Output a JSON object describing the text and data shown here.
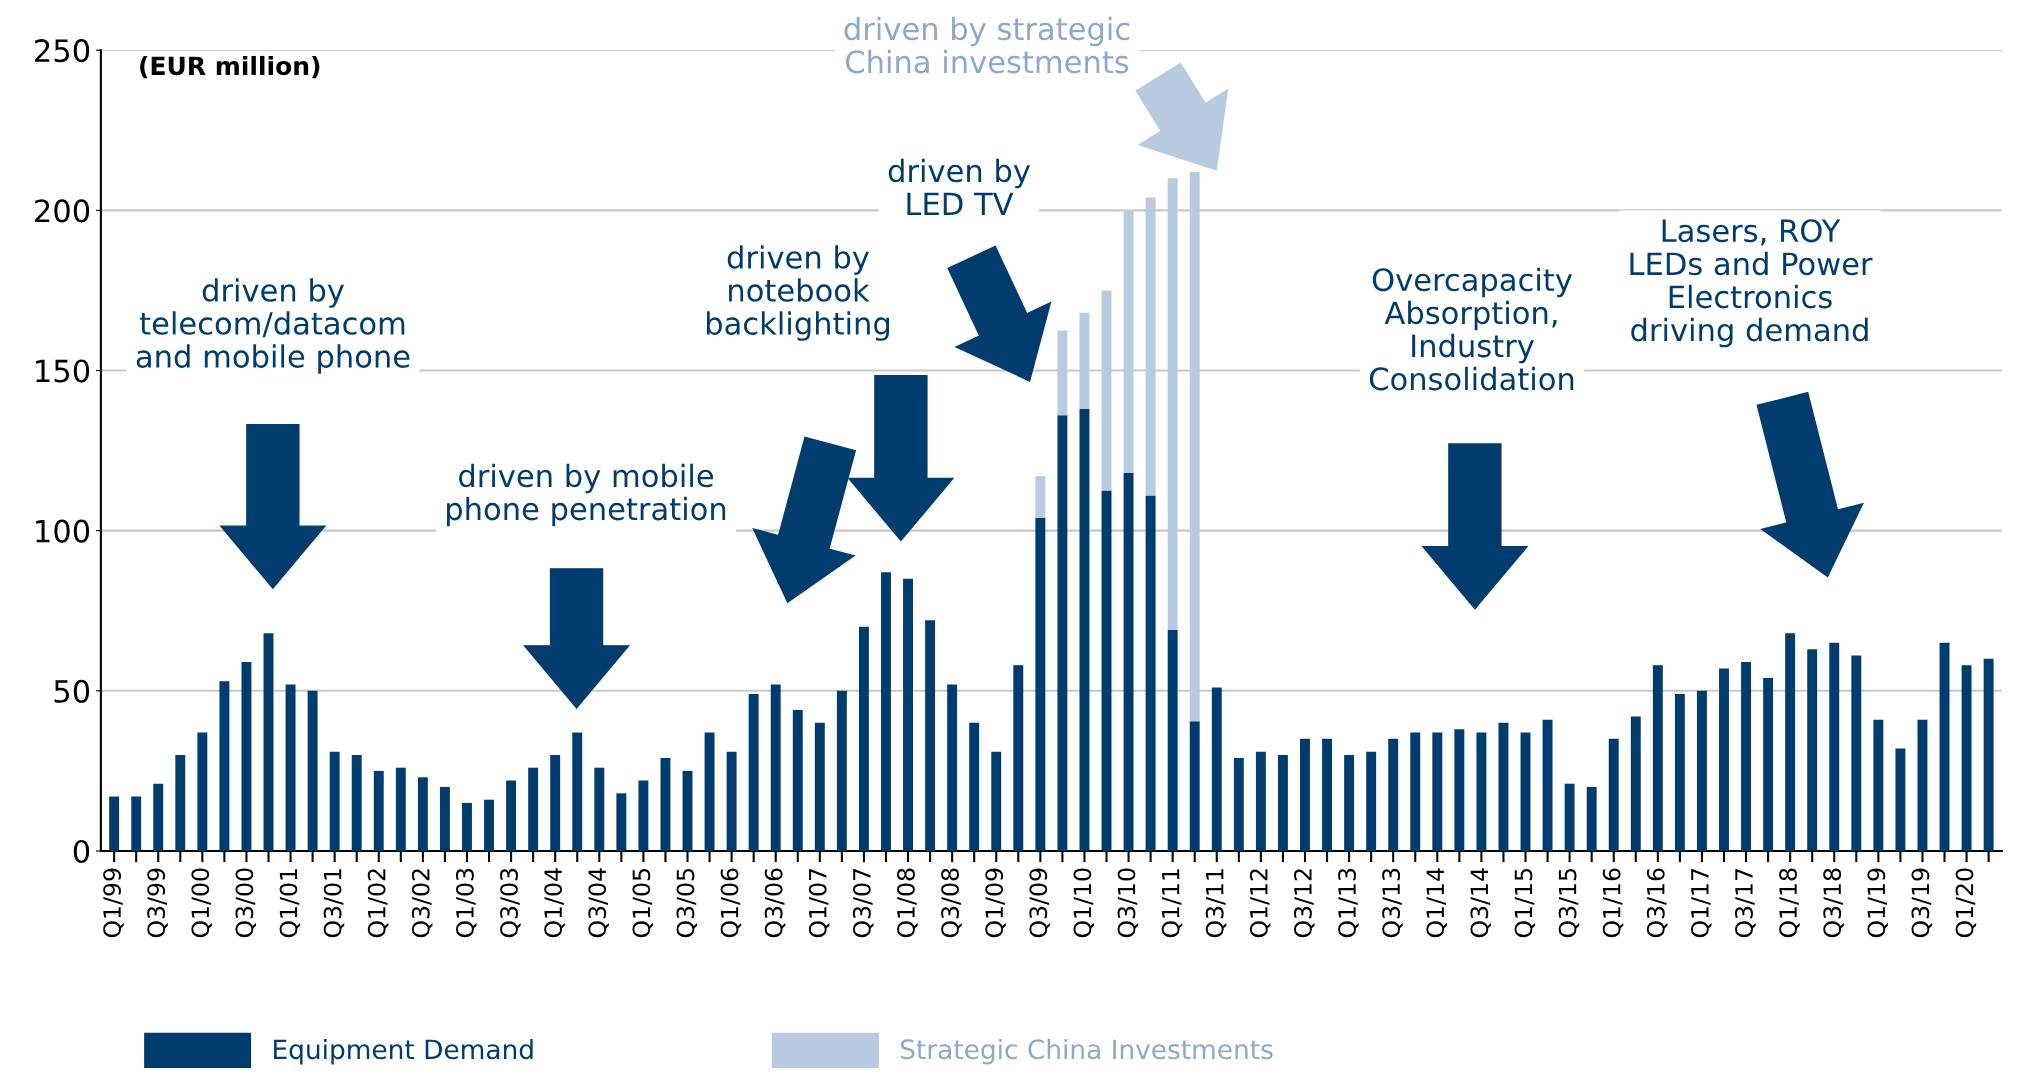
{
  "chart_data": {
    "type": "bar",
    "stacked": true,
    "categories": [
      "Q1/99",
      null,
      "Q3/99",
      null,
      "Q1/00",
      null,
      "Q3/00",
      null,
      "Q1/01",
      null,
      "Q3/01",
      null,
      "Q1/02",
      null,
      "Q3/02",
      null,
      "Q1/03",
      null,
      "Q3/03",
      null,
      "Q1/04",
      null,
      "Q3/04",
      null,
      "Q1/05",
      null,
      "Q3/05",
      null,
      "Q1/06",
      null,
      "Q3/06",
      null,
      "Q1/07",
      null,
      "Q3/07",
      null,
      "Q1/08",
      null,
      "Q3/08",
      null,
      "Q1/09",
      null,
      "Q3/09",
      null,
      "Q1/10",
      null,
      "Q3/10",
      null,
      "Q1/11",
      null,
      "Q3/11",
      null,
      "Q1/12",
      null,
      "Q3/12",
      null,
      "Q1/13",
      null,
      "Q3/13",
      null,
      "Q1/14",
      null,
      "Q3/14",
      null,
      "Q1/15",
      null,
      "Q3/15",
      null,
      "Q1/16",
      null,
      "Q3/16",
      null,
      "Q1/17",
      null,
      "Q3/17",
      null,
      "Q1/18",
      null,
      "Q3/18",
      null,
      "Q1/19",
      null,
      "Q3/19",
      null,
      "Q1/20",
      null
    ],
    "series": [
      {
        "name": "Equipment Demand",
        "color": "#003d6e",
        "values": [
          17,
          17,
          21,
          30,
          37,
          53,
          59,
          68,
          52,
          50,
          31,
          30,
          25,
          26,
          23,
          20,
          15,
          16,
          22,
          26,
          30,
          37,
          26,
          18,
          22,
          29,
          25,
          37,
          31,
          49,
          52,
          44,
          40,
          50,
          70,
          87,
          85,
          72,
          52,
          40,
          31,
          58,
          104,
          136,
          138,
          112.5,
          118,
          111,
          69,
          40.5,
          51,
          29,
          31,
          30,
          35,
          35,
          30,
          31,
          35,
          37,
          37,
          38,
          37,
          40,
          37,
          41,
          21,
          20,
          35,
          42,
          58,
          49,
          50,
          57,
          59,
          54,
          68,
          63,
          65,
          61,
          41,
          32,
          41,
          65,
          58,
          60
        ]
      },
      {
        "name": "Strategic China Investments",
        "color": "#b9cbe0",
        "values": [
          null,
          null,
          null,
          null,
          null,
          null,
          null,
          null,
          null,
          null,
          null,
          null,
          null,
          null,
          null,
          null,
          null,
          null,
          null,
          null,
          null,
          null,
          null,
          null,
          null,
          null,
          null,
          null,
          null,
          null,
          null,
          null,
          null,
          null,
          null,
          null,
          null,
          null,
          null,
          null,
          null,
          null,
          13,
          26.5,
          30,
          62.5,
          82,
          93,
          141,
          171.5,
          null,
          null,
          null,
          null,
          null,
          null,
          null,
          null,
          null,
          null,
          null,
          null,
          null,
          null,
          null,
          null,
          null,
          null,
          null,
          null,
          null,
          null,
          null,
          null,
          null,
          null,
          null,
          null,
          null,
          null,
          null,
          null,
          null,
          null,
          null,
          null
        ]
      }
    ],
    "ylim": [
      0,
      250
    ],
    "yticks": [
      0,
      50,
      100,
      150,
      200,
      250
    ],
    "grid": "y",
    "legend": "bottom",
    "annotations": [
      "(EUR million)",
      "driven by\ntelecom/datacom\nand mobile phone",
      "driven by mobile\nphone penetration",
      "driven by\nnotebook\nbacklighting",
      "driven by\nLED TV",
      "driven by strategic\nChina investments",
      "Overcapacity\nAbsorption,\nIndustry\nConsolidation",
      "Lasers, ROY\nLEDs and Power\nElectronics\ndriving demand"
    ]
  }
}
